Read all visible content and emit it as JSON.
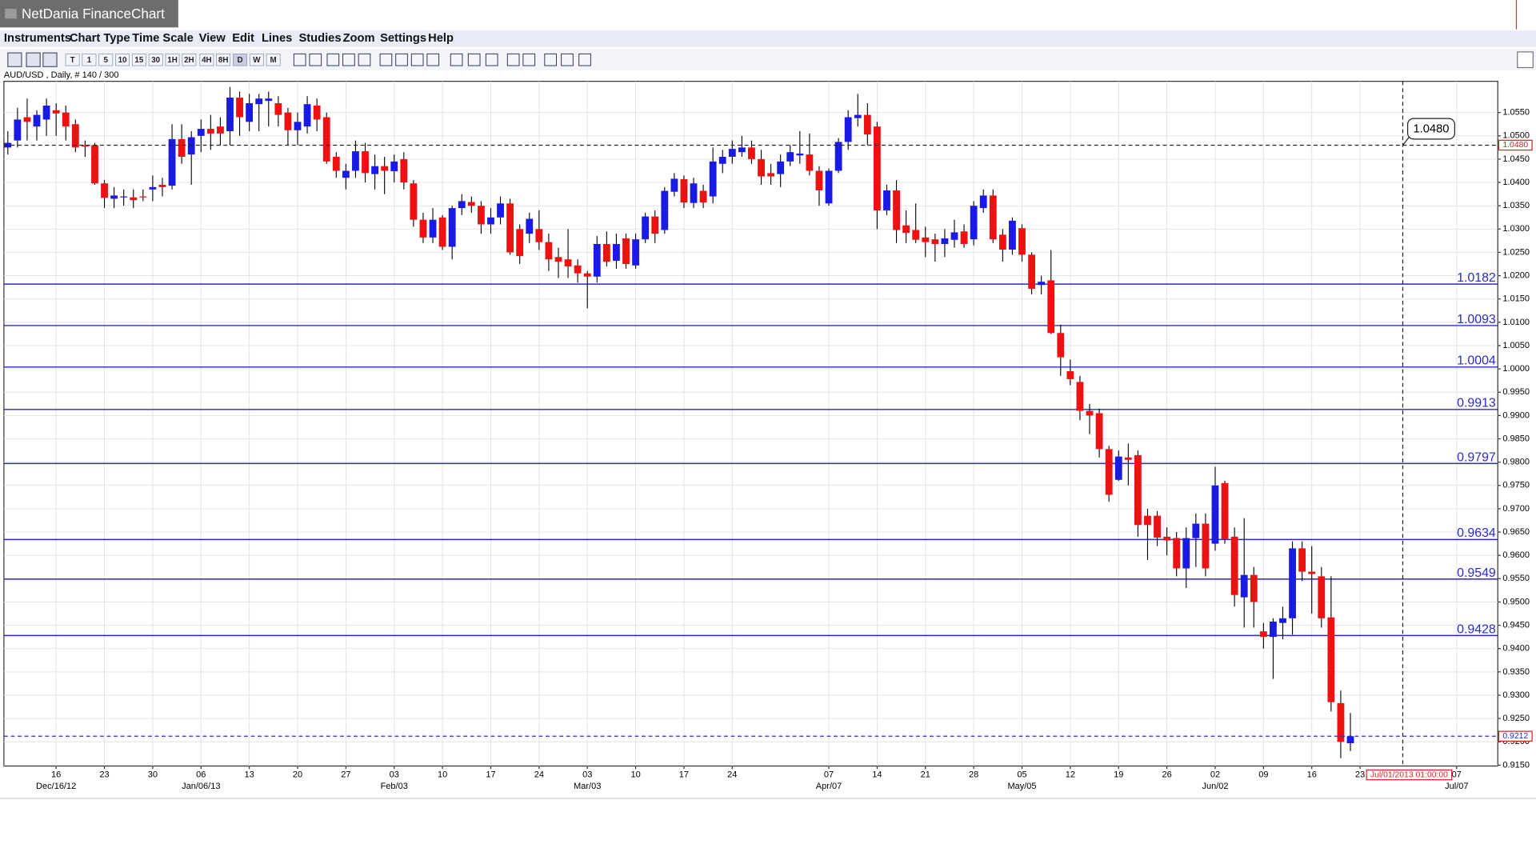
{
  "app_title": "NetDania FinanceChart",
  "menu": [
    "Instruments",
    "Chart Type",
    "Time Scale",
    "View",
    "Edit",
    "Lines",
    "Studies",
    "Zoom",
    "Settings",
    "Help"
  ],
  "toolbar": [
    "T",
    "1",
    "5",
    "10",
    "15",
    "30",
    "1H",
    "2H",
    "4H",
    "8H",
    "D",
    "W",
    "M"
  ],
  "chart_data": {
    "type": "candlestick",
    "subtitle": "AUD/USD , Daily, # 140 / 300",
    "up_color": "#1a1ae6",
    "down_color": "#ee1111",
    "level_color": "#2a2acc",
    "grid": true,
    "ylim": [
      0.9148,
      1.0617
    ],
    "yticks": [
      {
        "value": 0.915,
        "label": "0.9150"
      },
      {
        "value": 0.92,
        "label": "0.9200"
      },
      {
        "value": 0.925,
        "label": "0.9250"
      },
      {
        "value": 0.93,
        "label": "0.9300"
      },
      {
        "value": 0.935,
        "label": "0.9350"
      },
      {
        "value": 0.94,
        "label": "0.9400"
      },
      {
        "value": 0.945,
        "label": "0.9450"
      },
      {
        "value": 0.95,
        "label": "0.9500"
      },
      {
        "value": 0.955,
        "label": "0.9550"
      },
      {
        "value": 0.96,
        "label": "0.9600"
      },
      {
        "value": 0.965,
        "label": "0.9650"
      },
      {
        "value": 0.97,
        "label": "0.9700"
      },
      {
        "value": 0.975,
        "label": "0.9750"
      },
      {
        "value": 0.98,
        "label": "0.9800"
      },
      {
        "value": 0.985,
        "label": "0.9850"
      },
      {
        "value": 0.99,
        "label": "0.9900"
      },
      {
        "value": 0.995,
        "label": "0.9950"
      },
      {
        "value": 1.0,
        "label": "1.0000"
      },
      {
        "value": 1.005,
        "label": "1.0050"
      },
      {
        "value": 1.01,
        "label": "1.0100"
      },
      {
        "value": 1.015,
        "label": "1.0150"
      },
      {
        "value": 1.02,
        "label": "1.0200"
      },
      {
        "value": 1.025,
        "label": "1.0250"
      },
      {
        "value": 1.03,
        "label": "1.0300"
      },
      {
        "value": 1.035,
        "label": "1.0350"
      },
      {
        "value": 1.04,
        "label": "1.0400"
      },
      {
        "value": 1.045,
        "label": "1.0450"
      },
      {
        "value": 1.05,
        "label": "1.0500"
      },
      {
        "value": 1.055,
        "label": "1.0550"
      }
    ],
    "xticks": [
      {
        "value": 5,
        "label": "16"
      },
      {
        "value": 10,
        "label": "23"
      },
      {
        "value": 15,
        "label": "30"
      },
      {
        "value": 20,
        "label": "06"
      },
      {
        "value": 25,
        "label": "13"
      },
      {
        "value": 30,
        "label": "20"
      },
      {
        "value": 35,
        "label": "27"
      },
      {
        "value": 40,
        "label": "03"
      },
      {
        "value": 45,
        "label": "10"
      },
      {
        "value": 50,
        "label": "17"
      },
      {
        "value": 55,
        "label": "24"
      },
      {
        "value": 60,
        "label": "03"
      },
      {
        "value": 65,
        "label": "10"
      },
      {
        "value": 70,
        "label": "17"
      },
      {
        "value": 75,
        "label": "24"
      },
      {
        "value": 85,
        "label": "07"
      },
      {
        "value": 90,
        "label": "14"
      },
      {
        "value": 95,
        "label": "21"
      },
      {
        "value": 100,
        "label": "28"
      },
      {
        "value": 105,
        "label": "05"
      },
      {
        "value": 110,
        "label": "12"
      },
      {
        "value": 115,
        "label": "19"
      },
      {
        "value": 120,
        "label": "26"
      },
      {
        "value": 125,
        "label": "02"
      },
      {
        "value": 130,
        "label": "09"
      },
      {
        "value": 135,
        "label": "16"
      },
      {
        "value": 140,
        "label": "23"
      },
      {
        "value": 150,
        "label": "07"
      }
    ],
    "xmajor": [
      {
        "value": 5,
        "label": "Dec/16/12"
      },
      {
        "value": 20,
        "label": "Jan/06/13"
      },
      {
        "value": 40,
        "label": "Feb/03"
      },
      {
        "value": 60,
        "label": "Mar/03"
      },
      {
        "value": 85,
        "label": "Apr/07"
      },
      {
        "value": 105,
        "label": "May/05"
      },
      {
        "value": 125,
        "label": "Jun/02"
      },
      {
        "value": 150,
        "label": "Jul/07"
      }
    ],
    "open": [
      1.0475,
      1.049,
      1.054,
      1.052,
      1.0535,
      1.0555,
      1.055,
      1.0525,
      1.048,
      1.048,
      1.0398,
      1.0365,
      1.0368,
      1.0368,
      1.037,
      1.0385,
      1.0395,
      1.0393,
      1.0493,
      1.046,
      1.05,
      1.0515,
      1.052,
      1.051,
      1.0582,
      1.053,
      1.0568,
      1.0575,
      1.057,
      1.055,
      1.0512,
      1.052,
      1.0565,
      1.054,
      1.0455,
      1.041,
      1.0425,
      1.0467,
      1.0418,
      1.0435,
      1.0424,
      1.045,
      1.0398,
      1.032,
      1.0282,
      1.0325,
      1.0262,
      1.0345,
      1.0358,
      1.035,
      1.031,
      1.0325,
      1.0355,
      1.03,
      1.029,
      1.03,
      1.0272,
      1.024,
      1.0235,
      1.0222,
      1.0205,
      1.0198,
      1.0268,
      1.0232,
      1.028,
      1.0222,
      1.0278,
      1.0327,
      1.0298,
      1.038,
      1.0407,
      1.0356,
      1.0382,
      1.037,
      1.044,
      1.0455,
      1.0465,
      1.0475,
      1.045,
      1.042,
      1.0418,
      1.0445,
      1.0458,
      1.046,
      1.0425,
      1.0355,
      1.0425,
      1.0487,
      1.0538,
      1.0545,
      1.052,
      1.034,
      1.0383,
      1.0308,
      1.0298,
      1.0282,
      1.0278,
      1.0268,
      1.0277,
      1.0295,
      1.0278,
      1.0345,
      1.0372,
      1.0288,
      1.0256,
      1.0302,
      1.0245,
      1.018,
      1.019,
      1.0077,
      0.9995,
      0.9972,
      0.991,
      0.9905,
      0.9828,
      0.9762,
      0.981,
      0.9815,
      0.9685,
      0.9685,
      0.964,
      0.9637,
      0.9572,
      0.9637,
      0.9668,
      0.9625,
      0.9755,
      0.964,
      0.951,
      0.9558,
      0.9437,
      0.9425,
      0.9455,
      0.9465,
      0.9615,
      0.9565,
      0.9555,
      0.9467,
      0.9283,
      0.9197
    ],
    "high": [
      1.051,
      1.056,
      1.058,
      1.0555,
      1.058,
      1.057,
      1.0565,
      1.0535,
      1.049,
      1.0485,
      1.0405,
      1.039,
      1.0385,
      1.0385,
      1.0385,
      1.0415,
      1.041,
      1.0525,
      1.0525,
      1.051,
      1.0535,
      1.0545,
      1.054,
      1.0605,
      1.0595,
      1.059,
      1.059,
      1.0595,
      1.0585,
      1.056,
      1.055,
      1.0585,
      1.058,
      1.055,
      1.0465,
      1.044,
      1.049,
      1.0485,
      1.046,
      1.0455,
      1.046,
      1.0465,
      1.0405,
      1.0335,
      1.0345,
      1.033,
      1.035,
      1.0375,
      1.037,
      1.036,
      1.0345,
      1.037,
      1.0365,
      1.031,
      1.0335,
      1.034,
      1.029,
      1.026,
      1.03,
      1.0235,
      1.021,
      1.0285,
      1.0295,
      1.029,
      1.029,
      1.029,
      1.0335,
      1.034,
      1.039,
      1.042,
      1.0415,
      1.041,
      1.0395,
      1.0475,
      1.047,
      1.049,
      1.05,
      1.049,
      1.047,
      1.044,
      1.046,
      1.048,
      1.051,
      1.0505,
      1.0435,
      1.043,
      1.0495,
      1.0555,
      1.059,
      1.057,
      1.053,
      1.0395,
      1.0405,
      1.034,
      1.0355,
      1.0305,
      1.029,
      1.03,
      1.032,
      1.031,
      1.036,
      1.0385,
      1.0385,
      1.03,
      1.0325,
      1.031,
      1.025,
      1.02,
      1.0255,
      1.0095,
      1.002,
      0.9985,
      0.9925,
      0.9915,
      0.9835,
      0.9825,
      0.984,
      0.9825,
      0.97,
      0.9695,
      0.966,
      0.965,
      0.966,
      0.969,
      0.969,
      0.979,
      0.976,
      0.966,
      0.968,
      0.9575,
      0.9455,
      0.9465,
      0.949,
      0.963,
      0.963,
      0.962,
      0.9575,
      0.9555,
      0.931,
      0.9262
    ],
    "low": [
      1.046,
      1.0475,
      1.049,
      1.049,
      1.05,
      1.05,
      1.049,
      1.0465,
      1.0455,
      1.0395,
      1.0345,
      1.0345,
      1.035,
      1.0345,
      1.036,
      1.036,
      1.037,
      1.0385,
      1.044,
      1.0395,
      1.0465,
      1.047,
      1.048,
      1.048,
      1.05,
      1.051,
      1.051,
      1.052,
      1.052,
      1.048,
      1.048,
      1.0505,
      1.051,
      1.044,
      1.041,
      1.0385,
      1.041,
      1.04,
      1.0385,
      1.0375,
      1.04,
      1.0385,
      1.0305,
      1.027,
      1.027,
      1.0255,
      1.0235,
      1.033,
      1.0335,
      1.029,
      1.029,
      1.031,
      1.0245,
      1.0225,
      1.027,
      1.0255,
      1.021,
      1.0195,
      1.0195,
      1.0185,
      1.013,
      1.0185,
      1.022,
      1.0215,
      1.0215,
      1.0215,
      1.027,
      1.027,
      1.029,
      1.037,
      1.0345,
      1.0345,
      1.0345,
      1.0355,
      1.042,
      1.044,
      1.0455,
      1.044,
      1.0395,
      1.0395,
      1.039,
      1.0435,
      1.044,
      1.0415,
      1.035,
      1.035,
      1.042,
      1.047,
      1.052,
      1.048,
      1.03,
      1.033,
      1.027,
      1.027,
      1.027,
      1.024,
      1.023,
      1.024,
      1.026,
      1.026,
      1.0265,
      1.0335,
      1.027,
      1.023,
      1.0245,
      1.023,
      1.016,
      1.016,
      1.0075,
      0.9985,
      0.9965,
      0.989,
      0.986,
      0.981,
      0.9715,
      0.976,
      0.975,
      0.964,
      0.959,
      0.962,
      0.96,
      0.9555,
      0.953,
      0.9575,
      0.9555,
      0.961,
      0.9625,
      0.949,
      0.9445,
      0.9445,
      0.94,
      0.9335,
      0.942,
      0.943,
      0.9545,
      0.9475,
      0.9445,
      0.9265,
      0.9165,
      0.918
    ],
    "close": [
      1.0485,
      1.0535,
      1.053,
      1.0545,
      1.0565,
      1.0548,
      1.052,
      1.0475,
      1.0477,
      1.0398,
      1.0367,
      1.0372,
      1.037,
      1.0362,
      1.0368,
      1.039,
      1.039,
      1.0493,
      1.0455,
      1.0497,
      1.0515,
      1.0505,
      1.0505,
      1.0582,
      1.054,
      1.057,
      1.058,
      1.058,
      1.0545,
      1.0512,
      1.053,
      1.0568,
      1.0535,
      1.0445,
      1.0425,
      1.0425,
      1.0467,
      1.042,
      1.0435,
      1.0425,
      1.0445,
      1.04,
      1.032,
      1.0282,
      1.032,
      1.0262,
      1.0345,
      1.036,
      1.035,
      1.031,
      1.0325,
      1.0355,
      1.025,
      1.0242,
      1.0322,
      1.0272,
      1.0235,
      1.023,
      1.022,
      1.0205,
      1.0198,
      1.0268,
      1.023,
      1.0268,
      1.0225,
      1.0278,
      1.0327,
      1.029,
      1.0382,
      1.0408,
      1.0357,
      1.0398,
      1.0357,
      1.0445,
      1.0455,
      1.0472,
      1.0475,
      1.045,
      1.0413,
      1.0413,
      1.0445,
      1.0465,
      1.0462,
      1.0425,
      1.0383,
      1.0425,
      1.0487,
      1.054,
      1.0545,
      1.0503,
      1.034,
      1.0383,
      1.0298,
      1.0292,
      1.0277,
      1.0272,
      1.0268,
      1.028,
      1.0293,
      1.0268,
      1.035,
      1.0372,
      1.0278,
      1.0256,
      1.0318,
      1.0245,
      1.0172,
      1.0187,
      1.0077,
      1.0025,
      0.9978,
      0.991,
      0.99,
      0.9828,
      0.973,
      0.9812,
      0.9805,
      0.9665,
      0.9665,
      0.9638,
      0.9632,
      0.9572,
      0.9637,
      0.9668,
      0.9572,
      0.975,
      0.9635,
      0.9515,
      0.9558,
      0.95,
      0.9425,
      0.9458,
      0.9465,
      0.9615,
      0.9565,
      0.956,
      0.9465,
      0.9285,
      0.92,
      0.9212
    ],
    "levels": [
      1.0182,
      1.0093,
      1.0004,
      0.9913,
      0.9797,
      0.9634,
      0.9549,
      0.9428
    ],
    "crosshair": {
      "price": {
        "value": 1.048,
        "label": "1.0480"
      },
      "time_label": "Jul/01/2013 01:00:00"
    },
    "last_price": 0.9212
  }
}
